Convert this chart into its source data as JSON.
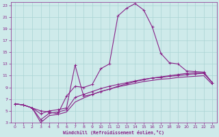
{
  "xlabel": "Windchill (Refroidissement éolien,°C)",
  "background_color": "#ceeaea",
  "grid_color": "#aad4d4",
  "line_color": "#882288",
  "xlim": [
    -0.5,
    23.5
  ],
  "ylim": [
    3,
    23.5
  ],
  "xticks": [
    0,
    1,
    2,
    3,
    4,
    5,
    6,
    7,
    8,
    9,
    10,
    11,
    12,
    13,
    14,
    15,
    16,
    17,
    18,
    19,
    20,
    21,
    22,
    23
  ],
  "yticks": [
    3,
    5,
    7,
    9,
    11,
    13,
    15,
    17,
    19,
    21,
    23
  ],
  "curve1_x": [
    0,
    1,
    2,
    3,
    4,
    5,
    6,
    7,
    8,
    9,
    10,
    11,
    12,
    13,
    14,
    15,
    16,
    17,
    18,
    19,
    20,
    21,
    22,
    23
  ],
  "curve1_y": [
    6.2,
    6.0,
    5.5,
    5.0,
    4.8,
    4.5,
    7.5,
    9.2,
    9.0,
    9.5,
    12.2,
    13.0,
    21.2,
    22.5,
    23.3,
    22.2,
    19.3,
    14.8,
    13.2,
    13.0,
    11.8,
    11.7,
    11.6,
    9.8
  ],
  "curve2_x": [
    0,
    1,
    2,
    3,
    4,
    5,
    6,
    7,
    8,
    9,
    10,
    11,
    12,
    13,
    14,
    15,
    16,
    17,
    18,
    19,
    20,
    21,
    22,
    23
  ],
  "curve2_y": [
    6.2,
    6.0,
    5.5,
    4.5,
    5.0,
    5.2,
    5.5,
    12.8,
    7.5,
    7.8,
    8.3,
    8.7,
    9.2,
    9.6,
    10.0,
    10.3,
    10.6,
    10.8,
    11.0,
    11.2,
    11.4,
    11.5,
    11.5,
    9.8
  ],
  "curve3_x": [
    0,
    1,
    2,
    3,
    4,
    5,
    6,
    7,
    8,
    9,
    10,
    11,
    12,
    13,
    14,
    15,
    16,
    17,
    18,
    19,
    20,
    21,
    22,
    23
  ],
  "curve3_y": [
    6.2,
    6.0,
    5.5,
    3.5,
    4.6,
    4.8,
    5.2,
    7.3,
    7.8,
    8.3,
    8.8,
    9.2,
    9.5,
    9.8,
    10.1,
    10.4,
    10.6,
    10.7,
    10.9,
    11.0,
    11.2,
    11.3,
    11.4,
    9.8
  ],
  "curve4_x": [
    0,
    1,
    2,
    3,
    4,
    5,
    6,
    7,
    8,
    9,
    10,
    11,
    12,
    13,
    14,
    15,
    16,
    17,
    18,
    19,
    20,
    21,
    22,
    23
  ],
  "curve4_y": [
    6.2,
    6.0,
    5.5,
    3.0,
    4.2,
    4.4,
    4.8,
    6.5,
    7.2,
    7.8,
    8.3,
    8.7,
    9.1,
    9.4,
    9.7,
    10.0,
    10.2,
    10.4,
    10.5,
    10.7,
    10.8,
    10.9,
    11.0,
    9.5
  ],
  "marker": "+"
}
